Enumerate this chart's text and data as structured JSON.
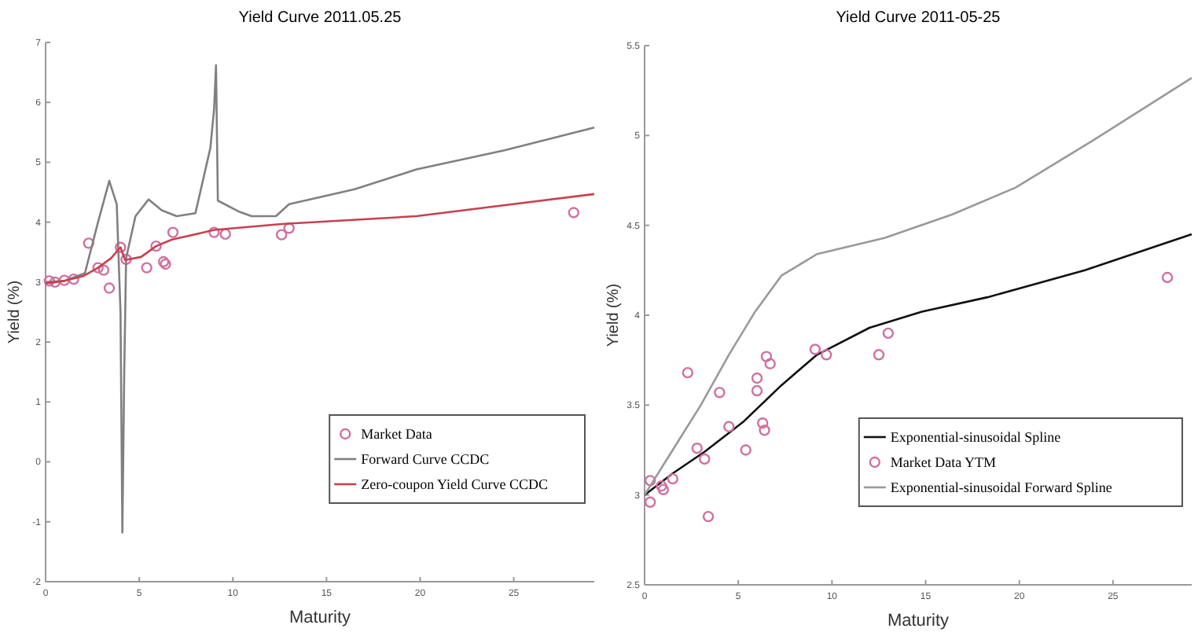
{
  "chart_data": [
    {
      "type": "line",
      "title": "Yield Curve 2011.05.25",
      "xlabel": "Maturity",
      "ylabel": "Yield (%)",
      "xlim": [
        0,
        29.3
      ],
      "ylim": [
        -2,
        7
      ],
      "xticks": [
        0,
        5,
        10,
        15,
        20,
        25
      ],
      "yticks": [
        -2,
        -1,
        0,
        1,
        2,
        3,
        4,
        5,
        6,
        7
      ],
      "legend": "bottom right",
      "series": [
        {
          "name": "Market Data",
          "type": "scatter",
          "marker": "circle",
          "color": "#d070a0",
          "x": [
            0.2,
            0.5,
            1.0,
            1.5,
            2.3,
            2.8,
            3.1,
            3.4,
            4.0,
            4.3,
            5.4,
            5.9,
            6.3,
            6.4,
            6.8,
            9.0,
            9.6,
            12.6,
            13.0,
            28.2
          ],
          "values": [
            3.02,
            3.0,
            3.03,
            3.05,
            3.65,
            3.24,
            3.2,
            2.9,
            3.58,
            3.38,
            3.24,
            3.6,
            3.34,
            3.3,
            3.83,
            3.83,
            3.8,
            3.79,
            3.9,
            4.16
          ]
        },
        {
          "name": "Forward Curve CCDC",
          "marker": "none",
          "color": "#808080",
          "x": [
            0,
            1.0,
            2.1,
            2.8,
            3.4,
            3.8,
            4.0,
            4.1,
            4.2,
            4.3,
            4.8,
            5.5,
            6.2,
            7.0,
            8.0,
            8.8,
            9.0,
            9.1,
            9.2,
            10.3,
            11.0,
            12.3,
            13.0,
            16.5,
            19.8,
            24.5,
            29.3
          ],
          "values": [
            3.0,
            3.02,
            3.15,
            4.0,
            4.69,
            4.3,
            2.5,
            -1.18,
            1.5,
            3.4,
            4.1,
            4.38,
            4.2,
            4.1,
            4.15,
            5.24,
            5.9,
            6.62,
            4.36,
            4.18,
            4.1,
            4.1,
            4.3,
            4.55,
            4.88,
            5.2,
            5.58
          ]
        },
        {
          "name": "Zero-coupon Yield Curve CCDC",
          "marker": "none",
          "color": "#c8404f",
          "x": [
            0,
            1.0,
            2.0,
            2.8,
            3.5,
            4.0,
            4.25,
            5.1,
            5.9,
            6.75,
            9.0,
            12.6,
            19.8,
            29.3
          ],
          "values": [
            2.98,
            3.02,
            3.1,
            3.24,
            3.4,
            3.58,
            3.37,
            3.42,
            3.6,
            3.71,
            3.87,
            3.97,
            4.1,
            4.47
          ]
        }
      ]
    },
    {
      "type": "line",
      "title": "Yield Curve 2011-05-25",
      "xlabel": "Maturity",
      "ylabel": "Yield (%)",
      "xlim": [
        0,
        29.2
      ],
      "ylim": [
        2.5,
        5.5
      ],
      "xticks": [
        0,
        5,
        10,
        15,
        20,
        25
      ],
      "yticks": [
        2.5,
        3,
        3.5,
        4,
        4.5,
        5,
        5.5
      ],
      "legend": "bottom right",
      "series": [
        {
          "name": "Exponential-sinusoidal Spline",
          "marker": "none",
          "color": "#111111",
          "x": [
            0,
            1.5,
            3.2,
            5.3,
            7.3,
            9.2,
            12,
            14.8,
            18.3,
            23.5,
            29.2
          ],
          "values": [
            3.0,
            3.12,
            3.24,
            3.41,
            3.61,
            3.78,
            3.93,
            4.02,
            4.1,
            4.25,
            4.45
          ]
        },
        {
          "name": "Market Data YTM",
          "type": "scatter",
          "marker": "circle",
          "color": "#d070a0",
          "x": [
            0.3,
            0.3,
            0.9,
            1.0,
            1.5,
            2.3,
            2.8,
            3.2,
            3.4,
            4.0,
            4.5,
            5.4,
            6.0,
            6.0,
            6.3,
            6.4,
            6.5,
            6.7,
            9.1,
            9.7,
            12.5,
            13.0,
            27.9
          ],
          "values": [
            3.08,
            2.96,
            3.05,
            3.03,
            3.09,
            3.68,
            3.26,
            3.2,
            2.88,
            3.57,
            3.38,
            3.25,
            3.65,
            3.58,
            3.4,
            3.36,
            3.77,
            3.73,
            3.81,
            3.78,
            3.78,
            3.9,
            4.21
          ]
        },
        {
          "name": "Exponential-sinusoidal Forward Spline",
          "marker": "none",
          "color": "#999999",
          "x": [
            0,
            1.5,
            3.0,
            4.5,
            5.9,
            7.3,
            9.2,
            12.8,
            16.4,
            19.8,
            23.9,
            29.2
          ],
          "values": [
            3.0,
            3.25,
            3.5,
            3.78,
            4.02,
            4.22,
            4.34,
            4.43,
            4.56,
            4.71,
            4.97,
            5.32
          ]
        }
      ]
    }
  ]
}
